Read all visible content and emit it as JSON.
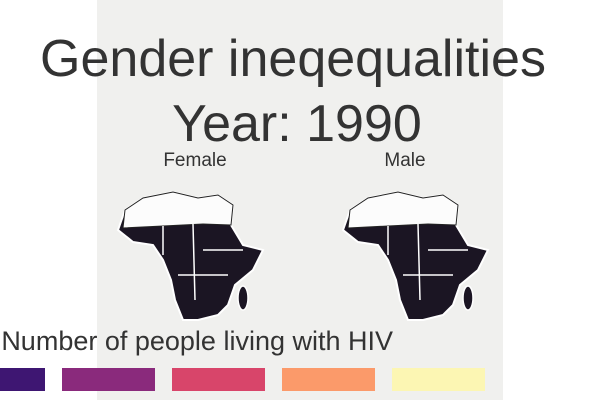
{
  "title": "Gender ineqequalities",
  "subtitle": "Year: 1990",
  "panels": [
    "Female",
    "Male"
  ],
  "legend": {
    "title": "Number of people living with HIV",
    "colors": [
      "#3e1672",
      "#8a2a7c",
      "#d8456a",
      "#fb9a6a",
      "#fcf6b3"
    ]
  }
}
